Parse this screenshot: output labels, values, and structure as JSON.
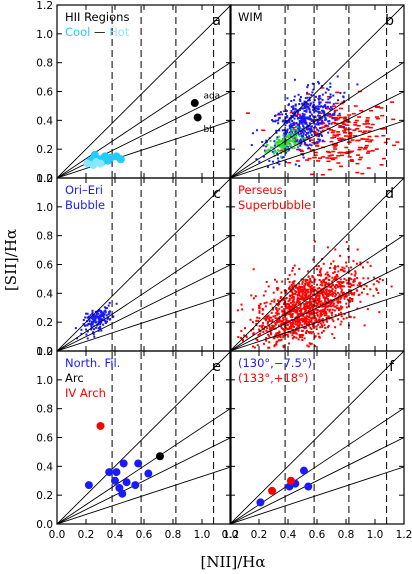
{
  "chart_data": {
    "type": "scatter",
    "xlabel": "[NII]/Hα",
    "ylabel": "[SII]/Hα",
    "xlim": [
      0.0,
      1.2
    ],
    "ylim": [
      0.0,
      1.2
    ],
    "x_ticks": [
      "0.0",
      "0.2",
      "0.4",
      "0.6",
      "0.8",
      "1.0",
      "1.2"
    ],
    "y_ticks": [
      "0.0",
      "0.2",
      "0.4",
      "0.6",
      "0.8",
      "1.0",
      "1.2"
    ],
    "reference_ratios": [
      1.0,
      0.67,
      0.5,
      0.33
    ],
    "vertical_dashed_x": [
      0.38,
      0.58,
      0.82,
      1.08
    ],
    "colors": {
      "blue": "#1a1aff",
      "red": "#ff0000",
      "green": "#33dd33",
      "black": "#000000",
      "cyan": "#22ccff",
      "lightcyan": "#88e8ff"
    },
    "panels": [
      {
        "label": "a",
        "legend": [
          {
            "text": "HII Regions",
            "color": "black"
          },
          {
            "text": "Cool",
            "color": "cyan"
          },
          {
            "text": "—",
            "color": "black"
          },
          {
            "text": "Hot",
            "color": "lightcyan"
          }
        ],
        "annotations": [
          {
            "text": "ada",
            "x": 1.01,
            "y": 0.55
          },
          {
            "text": "bb",
            "x": 1.01,
            "y": 0.32
          }
        ],
        "series": [
          {
            "color": "black",
            "marker": "circle",
            "points": [
              [
                0.95,
                0.52
              ],
              [
                0.97,
                0.42
              ]
            ]
          },
          {
            "color": "cyan",
            "marker": "circle",
            "points": [
              [
                0.23,
                0.12
              ],
              [
                0.26,
                0.16
              ],
              [
                0.29,
                0.13
              ],
              [
                0.33,
                0.15
              ],
              [
                0.37,
                0.14
              ],
              [
                0.41,
                0.15
              ],
              [
                0.44,
                0.13
              ],
              [
                0.31,
                0.11
              ],
              [
                0.35,
                0.12
              ]
            ]
          },
          {
            "color": "lightcyan",
            "marker": "circle",
            "points": [
              [
                0.21,
                0.1
              ],
              [
                0.25,
                0.09
              ],
              [
                0.27,
                0.11
              ],
              [
                0.3,
                0.1
              ]
            ]
          }
        ]
      },
      {
        "label": "b",
        "legend": [
          {
            "text": "WIM",
            "color": "black"
          }
        ],
        "annotations": [],
        "clouds": [
          {
            "color": "red",
            "center": [
              0.75,
              0.3
            ],
            "spread": [
              0.18,
              0.13
            ],
            "count": 260,
            "marker": "dash"
          },
          {
            "color": "blue",
            "center": [
              0.5,
              0.38
            ],
            "spread": [
              0.12,
              0.1
            ],
            "count": 520,
            "marker": "dot",
            "slope": 0.5
          },
          {
            "color": "green",
            "center": [
              0.38,
              0.24
            ],
            "spread": [
              0.06,
              0.035
            ],
            "count": 130,
            "marker": "dot",
            "slope": 0.5
          }
        ]
      },
      {
        "label": "c",
        "legend": [
          {
            "text": "Ori–Eri",
            "color": "blue"
          },
          {
            "text": "Bubble",
            "color": "blue"
          }
        ],
        "annotations": [],
        "clouds": [
          {
            "color": "blue",
            "center": [
              0.28,
              0.22
            ],
            "spread": [
              0.05,
              0.035
            ],
            "count": 160,
            "marker": "dot",
            "slope": 0.5
          }
        ]
      },
      {
        "label": "d",
        "legend": [
          {
            "text": "Perseus",
            "color": "red"
          },
          {
            "text": "Superbubble",
            "color": "red"
          }
        ],
        "annotations": [],
        "clouds": [
          {
            "color": "red",
            "center": [
              0.52,
              0.3
            ],
            "spread": [
              0.18,
              0.12
            ],
            "count": 1300,
            "marker": "dot",
            "slope": 0.45
          }
        ]
      },
      {
        "label": "e",
        "legend": [
          {
            "text": "North. Fil.",
            "color": "blue"
          },
          {
            "text": "Arc",
            "color": "black"
          },
          {
            "text": "IV Arch",
            "color": "red"
          }
        ],
        "annotations": [],
        "series": [
          {
            "color": "red",
            "marker": "circle",
            "points": [
              [
                0.3,
                0.68
              ]
            ]
          },
          {
            "color": "black",
            "marker": "circle",
            "points": [
              [
                0.71,
                0.47
              ]
            ]
          },
          {
            "color": "blue",
            "marker": "circle",
            "points": [
              [
                0.22,
                0.27
              ],
              [
                0.36,
                0.36
              ],
              [
                0.41,
                0.36
              ],
              [
                0.46,
                0.42
              ],
              [
                0.4,
                0.3
              ],
              [
                0.43,
                0.25
              ],
              [
                0.48,
                0.29
              ],
              [
                0.45,
                0.21
              ],
              [
                0.54,
                0.27
              ],
              [
                0.63,
                0.35
              ],
              [
                0.56,
                0.42
              ]
            ]
          }
        ]
      },
      {
        "label": "f",
        "legend": [
          {
            "text": "(130°,−7.5°)",
            "color": "blue"
          },
          {
            "text": "(133°,+18°)",
            "color": "red"
          }
        ],
        "annotations": [],
        "series": [
          {
            "color": "blue",
            "marker": "circle",
            "points": [
              [
                0.21,
                0.15
              ],
              [
                0.41,
                0.26
              ],
              [
                0.51,
                0.37
              ],
              [
                0.54,
                0.26
              ],
              [
                0.45,
                0.28
              ]
            ]
          },
          {
            "color": "red",
            "marker": "circle",
            "points": [
              [
                0.29,
                0.23
              ],
              [
                0.42,
                0.3
              ]
            ]
          }
        ]
      }
    ]
  }
}
